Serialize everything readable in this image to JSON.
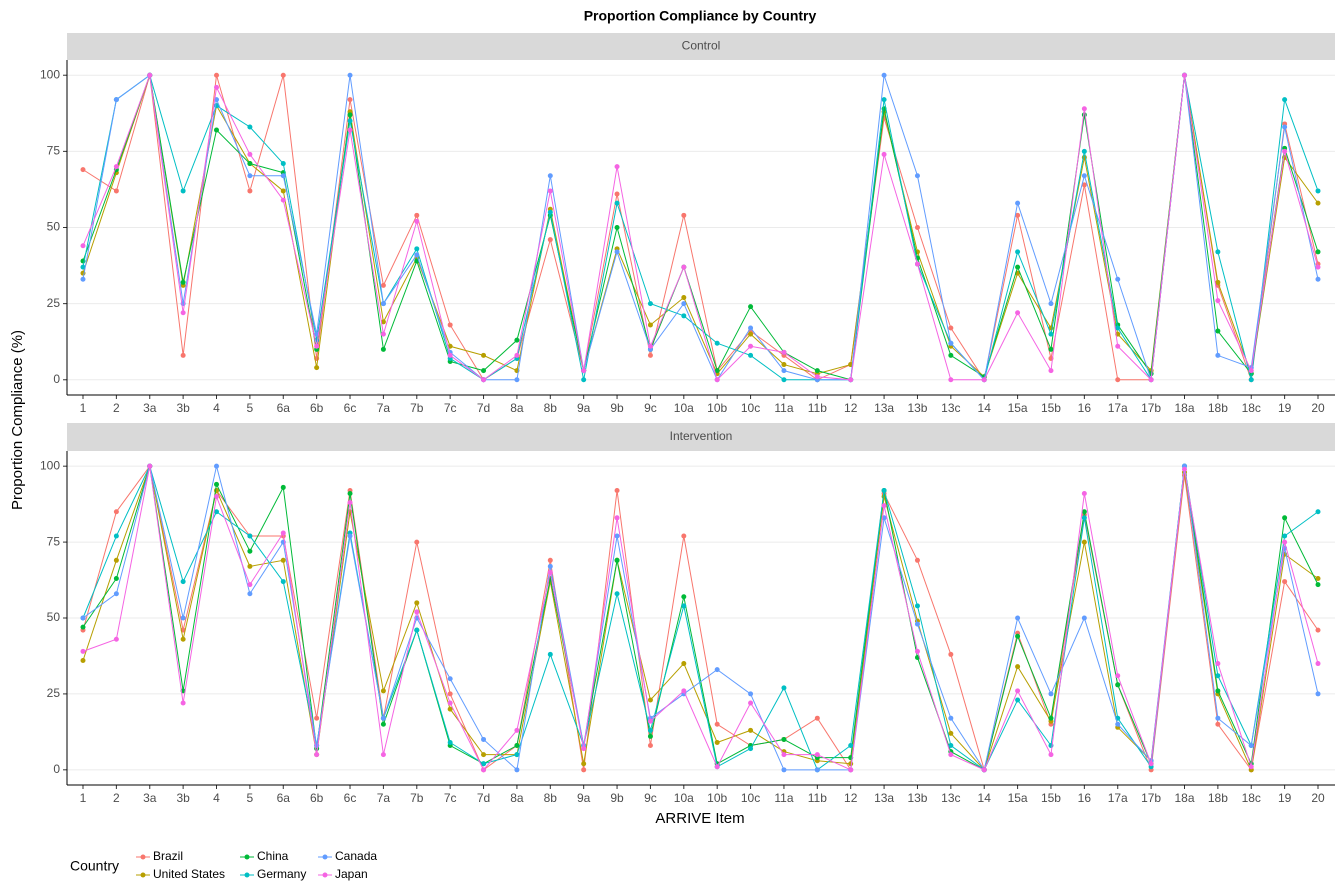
{
  "chart_data": {
    "type": "line",
    "title": "Proportion Compliance by Country",
    "x_label": "ARRIVE Item",
    "y_label": "Proportion Compliance (%)",
    "legend_title": "Country",
    "categories": [
      "1",
      "2",
      "3a",
      "3b",
      "4",
      "5",
      "6a",
      "6b",
      "6c",
      "7a",
      "7b",
      "7c",
      "7d",
      "8a",
      "8b",
      "9a",
      "9b",
      "9c",
      "10a",
      "10b",
      "10c",
      "11a",
      "11b",
      "12",
      "13a",
      "13b",
      "13c",
      "14",
      "15a",
      "15b",
      "16",
      "17a",
      "17b",
      "18a",
      "18b",
      "18c",
      "19",
      "20"
    ],
    "ylim": [
      -5,
      105
    ],
    "yticks": [
      0,
      25,
      50,
      75,
      100
    ],
    "grid": true,
    "panels": [
      {
        "title": "Control",
        "series": [
          {
            "name": "Brazil",
            "color": "#F8766D",
            "values": [
              69,
              62,
              100,
              8,
              100,
              62,
              100,
              7,
              92,
              31,
              54,
              18,
              0,
              7,
              46,
              3,
              61,
              8,
              54,
              3,
              16,
              8,
              0,
              5,
              86,
              50,
              17,
              0,
              54,
              7,
              64,
              0,
              0,
              100,
              31,
              0,
              84,
              38
            ]
          },
          {
            "name": "United States",
            "color": "#B79F00",
            "values": [
              35,
              68,
              100,
              31,
              90,
              71,
              62,
              4,
              88,
              19,
              40,
              11,
              8,
              3,
              56,
              3,
              43,
              18,
              27,
              2,
              15,
              5,
              2,
              5,
              88,
              42,
              11,
              1,
              35,
              17,
              73,
              15,
              3,
              100,
              32,
              2,
              73,
              58
            ]
          },
          {
            "name": "China",
            "color": "#00BA38",
            "values": [
              39,
              69,
              100,
              32,
              82,
              71,
              68,
              10,
              87,
              10,
              39,
              6,
              3,
              13,
              54,
              3,
              50,
              10,
              37,
              3,
              24,
              9,
              3,
              0,
              89,
              40,
              8,
              1,
              37,
              10,
              87,
              18,
              2,
              100,
              16,
              2,
              76,
              42
            ]
          },
          {
            "name": "Germany",
            "color": "#00BFC4",
            "values": [
              37,
              92,
              100,
              62,
              90,
              83,
              71,
              13,
              85,
              25,
              43,
              7,
              0,
              7,
              55,
              0,
              58,
              25,
              21,
              12,
              8,
              0,
              0,
              0,
              92,
              38,
              12,
              0,
              42,
              15,
              75,
              17,
              0,
              100,
              42,
              0,
              92,
              62
            ]
          },
          {
            "name": "Canada",
            "color": "#619CFF",
            "values": [
              33,
              92,
              100,
              25,
              92,
              67,
              67,
              15,
              100,
              25,
              41,
              9,
              0,
              0,
              67,
              3,
              42,
              10,
              25,
              0,
              17,
              3,
              0,
              0,
              100,
              67,
              12,
              0,
              58,
              25,
              67,
              33,
              0,
              100,
              8,
              4,
              83,
              33
            ]
          },
          {
            "name": "Japan",
            "color": "#F564E3",
            "values": [
              44,
              70,
              100,
              22,
              96,
              74,
              59,
              11,
              82,
              15,
              52,
              8,
              0,
              8,
              62,
              3,
              70,
              11,
              37,
              0,
              11,
              9,
              1,
              0,
              74,
              38,
              0,
              0,
              22,
              3,
              89,
              11,
              0,
              100,
              26,
              3,
              75,
              37
            ]
          }
        ]
      },
      {
        "title": "Intervention",
        "series": [
          {
            "name": "Brazil",
            "color": "#F8766D",
            "values": [
              46,
              85,
              100,
              46,
              92,
              77,
              77,
              17,
              92,
              17,
              75,
              25,
              0,
              8,
              69,
              0,
              92,
              8,
              77,
              15,
              8,
              10,
              17,
              0,
              91,
              69,
              38,
              0,
              45,
              15,
              84,
              28,
              0,
              97,
              15,
              0,
              62,
              46
            ]
          },
          {
            "name": "United States",
            "color": "#B79F00",
            "values": [
              36,
              69,
              100,
              43,
              92,
              67,
              69,
              5,
              85,
              26,
              55,
              20,
              5,
              5,
              62,
              2,
              69,
              23,
              35,
              9,
              13,
              6,
              3,
              2,
              90,
              49,
              12,
              0,
              34,
              16,
              75,
              14,
              3,
              98,
              25,
              0,
              71,
              63
            ]
          },
          {
            "name": "China",
            "color": "#00BA38",
            "values": [
              47,
              63,
              100,
              26,
              94,
              72,
              93,
              7,
              91,
              15,
              46,
              8,
              2,
              8,
              63,
              8,
              69,
              11,
              57,
              2,
              8,
              10,
              4,
              4,
              92,
              37,
              6,
              0,
              44,
              17,
              85,
              28,
              2,
              100,
              26,
              2,
              83,
              61
            ]
          },
          {
            "name": "Germany",
            "color": "#00BFC4",
            "values": [
              50,
              77,
              100,
              62,
              85,
              77,
              62,
              8,
              78,
              17,
              46,
              9,
              2,
              5,
              38,
              8,
              58,
              13,
              54,
              1,
              7,
              27,
              0,
              8,
              92,
              54,
              8,
              0,
              23,
              8,
              83,
              17,
              1,
              100,
              31,
              8,
              77,
              85
            ]
          },
          {
            "name": "Canada",
            "color": "#619CFF",
            "values": [
              50,
              58,
              100,
              50,
              100,
              58,
              75,
              8,
              77,
              17,
              50,
              30,
              10,
              0,
              67,
              8,
              77,
              17,
              25,
              33,
              25,
              0,
              0,
              0,
              83,
              48,
              17,
              0,
              50,
              25,
              50,
              15,
              3,
              100,
              17,
              8,
              73,
              25
            ]
          },
          {
            "name": "Japan",
            "color": "#F564E3",
            "values": [
              39,
              43,
              100,
              22,
              90,
              61,
              78,
              5,
              88,
              5,
              52,
              22,
              0,
              13,
              65,
              7,
              83,
              16,
              26,
              1,
              22,
              5,
              5,
              0,
              87,
              39,
              5,
              0,
              26,
              5,
              91,
              31,
              2,
              99,
              35,
              1,
              75,
              35
            ]
          }
        ]
      }
    ]
  }
}
